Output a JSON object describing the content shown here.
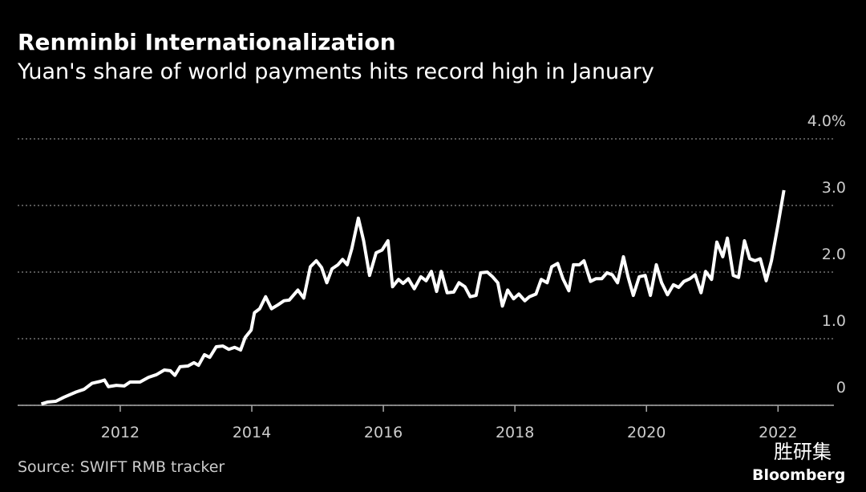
{
  "chart_data": {
    "type": "line",
    "title": "Renminbi Internationalization",
    "subtitle": "Yuan's share of world payments hits record high in January",
    "source": "Source: SWIFT RMB tracker",
    "watermark": "胜研集",
    "brand": "Bloomberg",
    "x": [
      2010.8,
      2010.9,
      2011.02,
      2011.14,
      2011.33,
      2011.45,
      2011.57,
      2011.7,
      2011.76,
      2011.82,
      2011.94,
      2012.06,
      2012.15,
      2012.3,
      2012.43,
      2012.55,
      2012.67,
      2012.76,
      2012.83,
      2012.91,
      2013.03,
      2013.12,
      2013.19,
      2013.28,
      2013.36,
      2013.46,
      2013.56,
      2013.65,
      2013.74,
      2013.83,
      2013.9,
      2013.99,
      2014.04,
      2014.12,
      2014.21,
      2014.3,
      2014.4,
      2014.49,
      2014.57,
      2014.7,
      2014.79,
      2014.89,
      2014.98,
      2015.06,
      2015.14,
      2015.22,
      2015.31,
      2015.38,
      2015.45,
      2015.52,
      2015.62,
      2015.7,
      2015.79,
      2015.89,
      2015.98,
      2016.07,
      2016.14,
      2016.23,
      2016.3,
      2016.38,
      2016.47,
      2016.57,
      2016.65,
      2016.73,
      2016.81,
      2016.88,
      2016.97,
      2017.07,
      2017.15,
      2017.24,
      2017.32,
      2017.41,
      2017.48,
      2017.58,
      2017.66,
      2017.74,
      2017.81,
      2017.89,
      2017.98,
      2018.06,
      2018.15,
      2018.22,
      2018.32,
      2018.4,
      2018.49,
      2018.56,
      2018.65,
      2018.73,
      2018.82,
      2018.89,
      2018.98,
      2019.05,
      2019.15,
      2019.23,
      2019.32,
      2019.4,
      2019.48,
      2019.56,
      2019.65,
      2019.72,
      2019.8,
      2019.89,
      2019.98,
      2020.06,
      2020.15,
      2020.23,
      2020.32,
      2020.41,
      2020.49,
      2020.57,
      2020.66,
      2020.74,
      2020.83,
      2020.9,
      2020.99,
      2021.07,
      2021.16,
      2021.23,
      2021.32,
      2021.4,
      2021.49,
      2021.57,
      2021.65,
      2021.73,
      2021.82,
      2021.9,
      2022.0,
      2022.09
    ],
    "series": [
      {
        "name": "Yuan share",
        "color": "#ffffff",
        "values": [
          0.02,
          0.05,
          0.06,
          0.12,
          0.2,
          0.24,
          0.33,
          0.36,
          0.38,
          0.28,
          0.3,
          0.29,
          0.35,
          0.35,
          0.42,
          0.46,
          0.53,
          0.52,
          0.45,
          0.58,
          0.59,
          0.64,
          0.6,
          0.76,
          0.72,
          0.88,
          0.89,
          0.84,
          0.87,
          0.83,
          1.02,
          1.13,
          1.39,
          1.45,
          1.63,
          1.45,
          1.51,
          1.57,
          1.58,
          1.73,
          1.61,
          2.08,
          2.17,
          2.07,
          1.84,
          2.05,
          2.11,
          2.19,
          2.11,
          2.35,
          2.81,
          2.47,
          1.95,
          2.29,
          2.33,
          2.47,
          1.78,
          1.89,
          1.83,
          1.9,
          1.75,
          1.93,
          1.87,
          2.01,
          1.71,
          2.01,
          1.69,
          1.7,
          1.84,
          1.78,
          1.63,
          1.65,
          1.99,
          2.0,
          1.93,
          1.84,
          1.49,
          1.73,
          1.6,
          1.67,
          1.57,
          1.63,
          1.67,
          1.89,
          1.84,
          2.08,
          2.13,
          1.9,
          1.72,
          2.11,
          2.11,
          2.17,
          1.86,
          1.9,
          1.9,
          1.99,
          1.96,
          1.84,
          2.23,
          1.93,
          1.65,
          1.93,
          1.95,
          1.65,
          2.11,
          1.84,
          1.66,
          1.81,
          1.77,
          1.86,
          1.9,
          1.96,
          1.69,
          2.01,
          1.89,
          2.45,
          2.23,
          2.51,
          1.95,
          1.92,
          2.47,
          2.2,
          2.17,
          2.2,
          1.87,
          2.17,
          2.71,
          3.23
        ]
      }
    ],
    "xlim": [
      2010.44,
      2022.85
    ],
    "xticks": [
      2012,
      2014,
      2016,
      2018,
      2020,
      2022
    ],
    "ylim": [
      0,
      4.0
    ],
    "yticks": [
      0,
      {
        "value": 1,
        "label": "1.0"
      },
      {
        "value": 2,
        "label": "2.0"
      },
      {
        "value": 3,
        "label": "3.0"
      },
      {
        "value": 4,
        "label": "4.0%"
      }
    ],
    "grid": true
  }
}
